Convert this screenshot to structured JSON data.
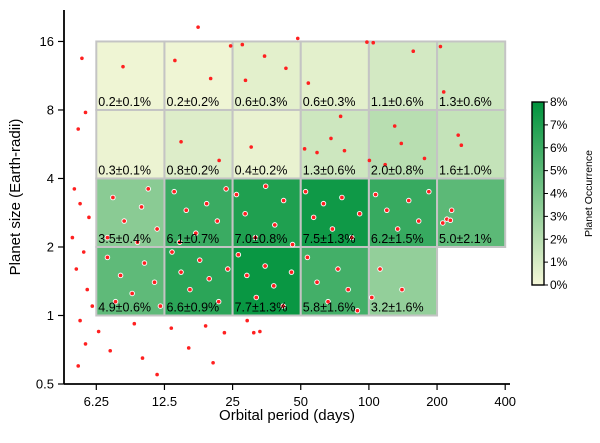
{
  "chart_data": {
    "type": "heatmap",
    "title": "",
    "xlabel": "Orbital period (days)",
    "ylabel": "Planet size (Earth-radii)",
    "x_scale": "log2",
    "y_scale": "log2",
    "xlim": [
      4.5,
      420
    ],
    "ylim": [
      0.5,
      22
    ],
    "x_ticks": [
      6.25,
      12.5,
      25,
      50,
      100,
      200,
      400
    ],
    "x_tick_labels": [
      "6.25",
      "12.5",
      "25",
      "50",
      "100",
      "200",
      "400"
    ],
    "y_ticks": [
      0.5,
      1,
      2,
      4,
      8,
      16
    ],
    "y_tick_labels": [
      "0.5",
      "1",
      "2",
      "4",
      "8",
      "16"
    ],
    "colorbar": {
      "title": "Planet Occurrence",
      "min": 0,
      "max": 8,
      "ticks": [
        0,
        1,
        2,
        3,
        4,
        5,
        6,
        7,
        8
      ],
      "tick_labels": [
        "0%",
        "1%",
        "2%",
        "3%",
        "4%",
        "5%",
        "6%",
        "7%",
        "8%"
      ],
      "color_low": "#f5f7d8",
      "color_high": "#00933d"
    },
    "cells": [
      {
        "p_min": 6.25,
        "p_max": 12.5,
        "r_min": 8,
        "r_max": 16,
        "value": 0.2,
        "label": "0.2±0.1%"
      },
      {
        "p_min": 12.5,
        "p_max": 25,
        "r_min": 8,
        "r_max": 16,
        "value": 0.2,
        "label": "0.2±0.2%"
      },
      {
        "p_min": 25,
        "p_max": 50,
        "r_min": 8,
        "r_max": 16,
        "value": 0.6,
        "label": "0.6±0.3%"
      },
      {
        "p_min": 50,
        "p_max": 100,
        "r_min": 8,
        "r_max": 16,
        "value": 0.6,
        "label": "0.6±0.3%"
      },
      {
        "p_min": 100,
        "p_max": 200,
        "r_min": 8,
        "r_max": 16,
        "value": 1.1,
        "label": "1.1±0.6%"
      },
      {
        "p_min": 200,
        "p_max": 400,
        "r_min": 8,
        "r_max": 16,
        "value": 1.3,
        "label": "1.3±0.6%"
      },
      {
        "p_min": 6.25,
        "p_max": 12.5,
        "r_min": 4,
        "r_max": 8,
        "value": 0.3,
        "label": "0.3±0.1%"
      },
      {
        "p_min": 12.5,
        "p_max": 25,
        "r_min": 4,
        "r_max": 8,
        "value": 0.8,
        "label": "0.8±0.2%"
      },
      {
        "p_min": 25,
        "p_max": 50,
        "r_min": 4,
        "r_max": 8,
        "value": 0.4,
        "label": "0.4±0.2%"
      },
      {
        "p_min": 50,
        "p_max": 100,
        "r_min": 4,
        "r_max": 8,
        "value": 1.3,
        "label": "1.3±0.6%"
      },
      {
        "p_min": 100,
        "p_max": 200,
        "r_min": 4,
        "r_max": 8,
        "value": 2.0,
        "label": "2.0±0.8%"
      },
      {
        "p_min": 200,
        "p_max": 400,
        "r_min": 4,
        "r_max": 8,
        "value": 1.6,
        "label": "1.6±1.0%"
      },
      {
        "p_min": 6.25,
        "p_max": 12.5,
        "r_min": 2,
        "r_max": 4,
        "value": 3.5,
        "label": "3.5±0.4%"
      },
      {
        "p_min": 12.5,
        "p_max": 25,
        "r_min": 2,
        "r_max": 4,
        "value": 6.1,
        "label": "6.1±0.7%"
      },
      {
        "p_min": 25,
        "p_max": 50,
        "r_min": 2,
        "r_max": 4,
        "value": 7.0,
        "label": "7.0±0.8%"
      },
      {
        "p_min": 50,
        "p_max": 100,
        "r_min": 2,
        "r_max": 4,
        "value": 7.5,
        "label": "7.5±1.3%"
      },
      {
        "p_min": 100,
        "p_max": 200,
        "r_min": 2,
        "r_max": 4,
        "value": 6.2,
        "label": "6.2±1.5%"
      },
      {
        "p_min": 200,
        "p_max": 400,
        "r_min": 2,
        "r_max": 4,
        "value": 5.0,
        "label": "5.0±2.1%"
      },
      {
        "p_min": 6.25,
        "p_max": 12.5,
        "r_min": 1,
        "r_max": 2,
        "value": 4.9,
        "label": "4.9±0.6%"
      },
      {
        "p_min": 12.5,
        "p_max": 25,
        "r_min": 1,
        "r_max": 2,
        "value": 6.6,
        "label": "6.6±0.9%"
      },
      {
        "p_min": 25,
        "p_max": 50,
        "r_min": 1,
        "r_max": 2,
        "value": 7.7,
        "label": "7.7±1.3%"
      },
      {
        "p_min": 50,
        "p_max": 100,
        "r_min": 1,
        "r_max": 2,
        "value": 5.8,
        "label": "5.8±1.6%"
      },
      {
        "p_min": 100,
        "p_max": 200,
        "r_min": 1,
        "r_max": 2,
        "value": 3.2,
        "label": "3.2±1.6%"
      }
    ],
    "points_color": "#ff2020",
    "points": [
      [
        5.4,
        13.5
      ],
      [
        5.6,
        7.8
      ],
      [
        5.2,
        6.6
      ],
      [
        8.2,
        12.4
      ],
      [
        13.9,
        13.2
      ],
      [
        17.6,
        18.5
      ],
      [
        24.5,
        15.3
      ],
      [
        20.0,
        11.0
      ],
      [
        27.6,
        15.5
      ],
      [
        34.6,
        13.8
      ],
      [
        48.5,
        16.5
      ],
      [
        28.5,
        10.8
      ],
      [
        43.0,
        12.2
      ],
      [
        54.0,
        10.5
      ],
      [
        98.0,
        15.9
      ],
      [
        104.5,
        15.8
      ],
      [
        157.0,
        14.5
      ],
      [
        207.0,
        15.2
      ],
      [
        214.0,
        9.6
      ],
      [
        75.0,
        7.5
      ],
      [
        130.0,
        6.8
      ],
      [
        68.0,
        6.0
      ],
      [
        78.0,
        5.3
      ],
      [
        118.0,
        4.6
      ],
      [
        176.0,
        4.9
      ],
      [
        248.0,
        6.2
      ],
      [
        256.0,
        5.6
      ],
      [
        139.0,
        5.7
      ],
      [
        14.8,
        5.8
      ],
      [
        21.8,
        4.8
      ],
      [
        30.2,
        5.5
      ],
      [
        52.0,
        5.4
      ],
      [
        100.5,
        4.8
      ],
      [
        59.0,
        5.2
      ],
      [
        5.0,
        3.6
      ],
      [
        5.3,
        3.1
      ],
      [
        5.8,
        2.7
      ],
      [
        4.9,
        2.2
      ],
      [
        5.5,
        1.9
      ],
      [
        5.1,
        1.6
      ],
      [
        5.7,
        1.3
      ],
      [
        6.0,
        1.1
      ],
      [
        5.3,
        0.95
      ],
      [
        5.6,
        0.75
      ],
      [
        5.2,
        0.6
      ],
      [
        6.4,
        0.85
      ],
      [
        7.2,
        0.7
      ],
      [
        9.2,
        0.92
      ],
      [
        10.0,
        0.65
      ],
      [
        11.6,
        0.55
      ],
      [
        13.4,
        0.88
      ],
      [
        16.0,
        0.72
      ],
      [
        19.0,
        0.9
      ],
      [
        20.5,
        0.62
      ],
      [
        23.0,
        0.84
      ],
      [
        31.0,
        0.84
      ],
      [
        33.0,
        0.85
      ],
      [
        29.0,
        0.95
      ],
      [
        7.4,
        3.3
      ],
      [
        8.3,
        2.6
      ],
      [
        9.5,
        2.1
      ],
      [
        10.6,
        3.6
      ],
      [
        11.6,
        2.4
      ],
      [
        7.0,
        2.2
      ],
      [
        9.9,
        3.0
      ],
      [
        13.8,
        3.5
      ],
      [
        15.6,
        2.9
      ],
      [
        17.2,
        2.3
      ],
      [
        19.2,
        3.1
      ],
      [
        21.4,
        2.6
      ],
      [
        23.4,
        3.6
      ],
      [
        14.6,
        2.1
      ],
      [
        26.0,
        3.4
      ],
      [
        28.4,
        2.8
      ],
      [
        31.5,
        2.2
      ],
      [
        35.0,
        3.7
      ],
      [
        38.4,
        2.5
      ],
      [
        42.0,
        3.2
      ],
      [
        46.0,
        2.05
      ],
      [
        52.5,
        3.5
      ],
      [
        57.0,
        2.7
      ],
      [
        63.0,
        3.1
      ],
      [
        69.0,
        2.4
      ],
      [
        76.0,
        3.3
      ],
      [
        84.0,
        2.2
      ],
      [
        91.0,
        2.8
      ],
      [
        107.0,
        3.4
      ],
      [
        120.0,
        2.9
      ],
      [
        134.0,
        2.4
      ],
      [
        150.0,
        3.2
      ],
      [
        166.0,
        2.6
      ],
      [
        184.0,
        3.5
      ],
      [
        212.0,
        2.55
      ],
      [
        221.0,
        2.65
      ],
      [
        229.0,
        2.62
      ],
      [
        232.0,
        2.9
      ],
      [
        7.0,
        1.8
      ],
      [
        8.0,
        1.5
      ],
      [
        9.0,
        1.25
      ],
      [
        10.2,
        1.7
      ],
      [
        11.3,
        1.4
      ],
      [
        12.0,
        1.1
      ],
      [
        7.6,
        1.15
      ],
      [
        13.5,
        1.9
      ],
      [
        14.8,
        1.55
      ],
      [
        16.2,
        1.3
      ],
      [
        17.9,
        1.75
      ],
      [
        19.7,
        1.45
      ],
      [
        21.7,
        1.15
      ],
      [
        23.8,
        1.6
      ],
      [
        26.5,
        1.85
      ],
      [
        28.9,
        1.5
      ],
      [
        31.8,
        1.2
      ],
      [
        34.8,
        1.65
      ],
      [
        38.0,
        1.35
      ],
      [
        41.8,
        1.1
      ],
      [
        45.5,
        1.55
      ],
      [
        53.5,
        1.8
      ],
      [
        59.0,
        1.4
      ],
      [
        66.0,
        1.15
      ],
      [
        73.0,
        1.6
      ],
      [
        81.0,
        1.3
      ],
      [
        89.0,
        1.05
      ],
      [
        103.0,
        1.2
      ],
      [
        112.0,
        1.6
      ],
      [
        140.0,
        1.3
      ]
    ]
  }
}
